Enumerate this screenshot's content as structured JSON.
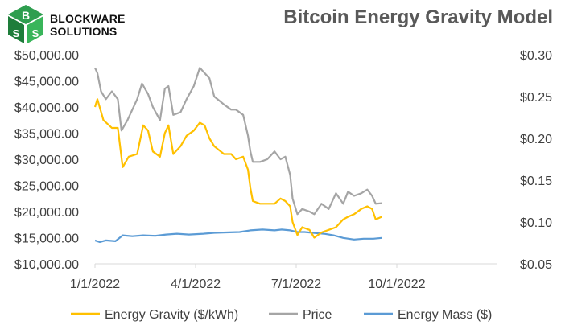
{
  "header": {
    "logo_line1": "BLOCKWARE",
    "logo_line2": "SOLUTIONS",
    "title": "Bitcoin Energy Gravity Model"
  },
  "chart_data": {
    "type": "line",
    "title": "Bitcoin Energy Gravity Model",
    "x_ticks": [
      "1/1/2022",
      "4/1/2022",
      "7/1/2022",
      "10/1/2022"
    ],
    "x_range": [
      "2022-01-01",
      "2022-12-01"
    ],
    "y_left_ticks": [
      "$50,000.00",
      "$45,000.00",
      "$40,000.00",
      "$35,000.00",
      "$30,000.00",
      "$25,000.00",
      "$20,000.00",
      "$15,000.00",
      "$10,000.00"
    ],
    "y_left_range": [
      10000,
      50000
    ],
    "y_right_ticks": [
      "$0.30",
      "$0.25",
      "$0.20",
      "$0.15",
      "$0.10",
      "$0.05"
    ],
    "y_right_range": [
      0.05,
      0.3
    ],
    "legend_position": "bottom",
    "series": [
      {
        "name": "Energy Gravity ($/kWh)",
        "color": "#FFC000",
        "axis": "left",
        "points": [
          [
            "2022-01-01",
            40000
          ],
          [
            "2022-01-03",
            41500
          ],
          [
            "2022-01-08",
            37500
          ],
          [
            "2022-01-15",
            36000
          ],
          [
            "2022-01-20",
            36000
          ],
          [
            "2022-01-24",
            28500
          ],
          [
            "2022-01-29",
            30500
          ],
          [
            "2022-02-05",
            31000
          ],
          [
            "2022-02-10",
            36500
          ],
          [
            "2022-02-14",
            35500
          ],
          [
            "2022-02-18",
            31500
          ],
          [
            "2022-02-24",
            30500
          ],
          [
            "2022-02-28",
            35000
          ],
          [
            "2022-03-03",
            36500
          ],
          [
            "2022-03-07",
            31000
          ],
          [
            "2022-03-13",
            32500
          ],
          [
            "2022-03-18",
            34500
          ],
          [
            "2022-03-24",
            35500
          ],
          [
            "2022-03-29",
            37000
          ],
          [
            "2022-04-02",
            36500
          ],
          [
            "2022-04-06",
            34000
          ],
          [
            "2022-04-10",
            32500
          ],
          [
            "2022-04-18",
            31000
          ],
          [
            "2022-04-24",
            31000
          ],
          [
            "2022-04-28",
            30000
          ],
          [
            "2022-05-04",
            30500
          ],
          [
            "2022-05-08",
            28000
          ],
          [
            "2022-05-10",
            24500
          ],
          [
            "2022-05-12",
            22000
          ],
          [
            "2022-05-18",
            21500
          ],
          [
            "2022-05-24",
            21500
          ],
          [
            "2022-05-30",
            21500
          ],
          [
            "2022-06-04",
            22500
          ],
          [
            "2022-06-08",
            22000
          ],
          [
            "2022-06-12",
            21000
          ],
          [
            "2022-06-14",
            18000
          ],
          [
            "2022-06-18",
            15500
          ],
          [
            "2022-06-22",
            17000
          ],
          [
            "2022-06-28",
            16500
          ],
          [
            "2022-07-02",
            15000
          ],
          [
            "2022-07-08",
            16000
          ],
          [
            "2022-07-14",
            16500
          ],
          [
            "2022-07-20",
            17000
          ],
          [
            "2022-07-26",
            18500
          ],
          [
            "2022-07-30",
            19000
          ],
          [
            "2022-08-04",
            19500
          ],
          [
            "2022-08-10",
            20500
          ],
          [
            "2022-08-15",
            21000
          ],
          [
            "2022-08-19",
            20500
          ],
          [
            "2022-08-22",
            18500
          ],
          [
            "2022-08-27",
            19000
          ]
        ]
      },
      {
        "name": "Price",
        "color": "#A5A5A5",
        "axis": "left",
        "points": [
          [
            "2022-01-01",
            47500
          ],
          [
            "2022-01-03",
            46500
          ],
          [
            "2022-01-06",
            43000
          ],
          [
            "2022-01-10",
            41500
          ],
          [
            "2022-01-15",
            43000
          ],
          [
            "2022-01-20",
            41500
          ],
          [
            "2022-01-23",
            35500
          ],
          [
            "2022-01-28",
            37500
          ],
          [
            "2022-02-05",
            41500
          ],
          [
            "2022-02-09",
            44500
          ],
          [
            "2022-02-14",
            42500
          ],
          [
            "2022-02-18",
            40000
          ],
          [
            "2022-02-24",
            37500
          ],
          [
            "2022-02-28",
            43500
          ],
          [
            "2022-03-03",
            44000
          ],
          [
            "2022-03-07",
            38500
          ],
          [
            "2022-03-13",
            39000
          ],
          [
            "2022-03-18",
            41500
          ],
          [
            "2022-03-24",
            44000
          ],
          [
            "2022-03-29",
            47500
          ],
          [
            "2022-04-02",
            46500
          ],
          [
            "2022-04-06",
            45500
          ],
          [
            "2022-04-10",
            42000
          ],
          [
            "2022-04-18",
            40500
          ],
          [
            "2022-04-24",
            39500
          ],
          [
            "2022-04-28",
            39500
          ],
          [
            "2022-05-04",
            38500
          ],
          [
            "2022-05-08",
            34500
          ],
          [
            "2022-05-10",
            31500
          ],
          [
            "2022-05-12",
            29500
          ],
          [
            "2022-05-18",
            29500
          ],
          [
            "2022-05-24",
            30000
          ],
          [
            "2022-05-30",
            31500
          ],
          [
            "2022-06-04",
            30000
          ],
          [
            "2022-06-08",
            30500
          ],
          [
            "2022-06-12",
            27000
          ],
          [
            "2022-06-14",
            22500
          ],
          [
            "2022-06-18",
            19500
          ],
          [
            "2022-06-22",
            20500
          ],
          [
            "2022-06-28",
            20000
          ],
          [
            "2022-07-02",
            19500
          ],
          [
            "2022-07-08",
            21500
          ],
          [
            "2022-07-14",
            20500
          ],
          [
            "2022-07-20",
            23500
          ],
          [
            "2022-07-26",
            21500
          ],
          [
            "2022-07-30",
            23800
          ],
          [
            "2022-08-04",
            23000
          ],
          [
            "2022-08-10",
            23500
          ],
          [
            "2022-08-15",
            24200
          ],
          [
            "2022-08-19",
            23000
          ],
          [
            "2022-08-22",
            21500
          ],
          [
            "2022-08-27",
            21600
          ]
        ]
      },
      {
        "name": "Energy Mass ($)",
        "color": "#5B9BD5",
        "axis": "right",
        "points": [
          [
            "2022-01-01",
            0.078
          ],
          [
            "2022-01-05",
            0.076
          ],
          [
            "2022-01-10",
            0.078
          ],
          [
            "2022-01-18",
            0.077
          ],
          [
            "2022-01-24",
            0.084
          ],
          [
            "2022-02-01",
            0.083
          ],
          [
            "2022-02-10",
            0.084
          ],
          [
            "2022-02-20",
            0.0835
          ],
          [
            "2022-03-01",
            0.085
          ],
          [
            "2022-03-10",
            0.086
          ],
          [
            "2022-03-20",
            0.085
          ],
          [
            "2022-04-01",
            0.086
          ],
          [
            "2022-04-10",
            0.087
          ],
          [
            "2022-04-20",
            0.0875
          ],
          [
            "2022-05-01",
            0.088
          ],
          [
            "2022-05-10",
            0.09
          ],
          [
            "2022-05-20",
            0.091
          ],
          [
            "2022-05-30",
            0.09
          ],
          [
            "2022-06-05",
            0.091
          ],
          [
            "2022-06-12",
            0.09
          ],
          [
            "2022-06-18",
            0.088
          ],
          [
            "2022-06-24",
            0.088
          ],
          [
            "2022-07-01",
            0.087
          ],
          [
            "2022-07-10",
            0.086
          ],
          [
            "2022-07-18",
            0.084
          ],
          [
            "2022-07-26",
            0.081
          ],
          [
            "2022-08-04",
            0.079
          ],
          [
            "2022-08-12",
            0.08
          ],
          [
            "2022-08-20",
            0.08
          ],
          [
            "2022-08-27",
            0.081
          ]
        ]
      }
    ]
  }
}
